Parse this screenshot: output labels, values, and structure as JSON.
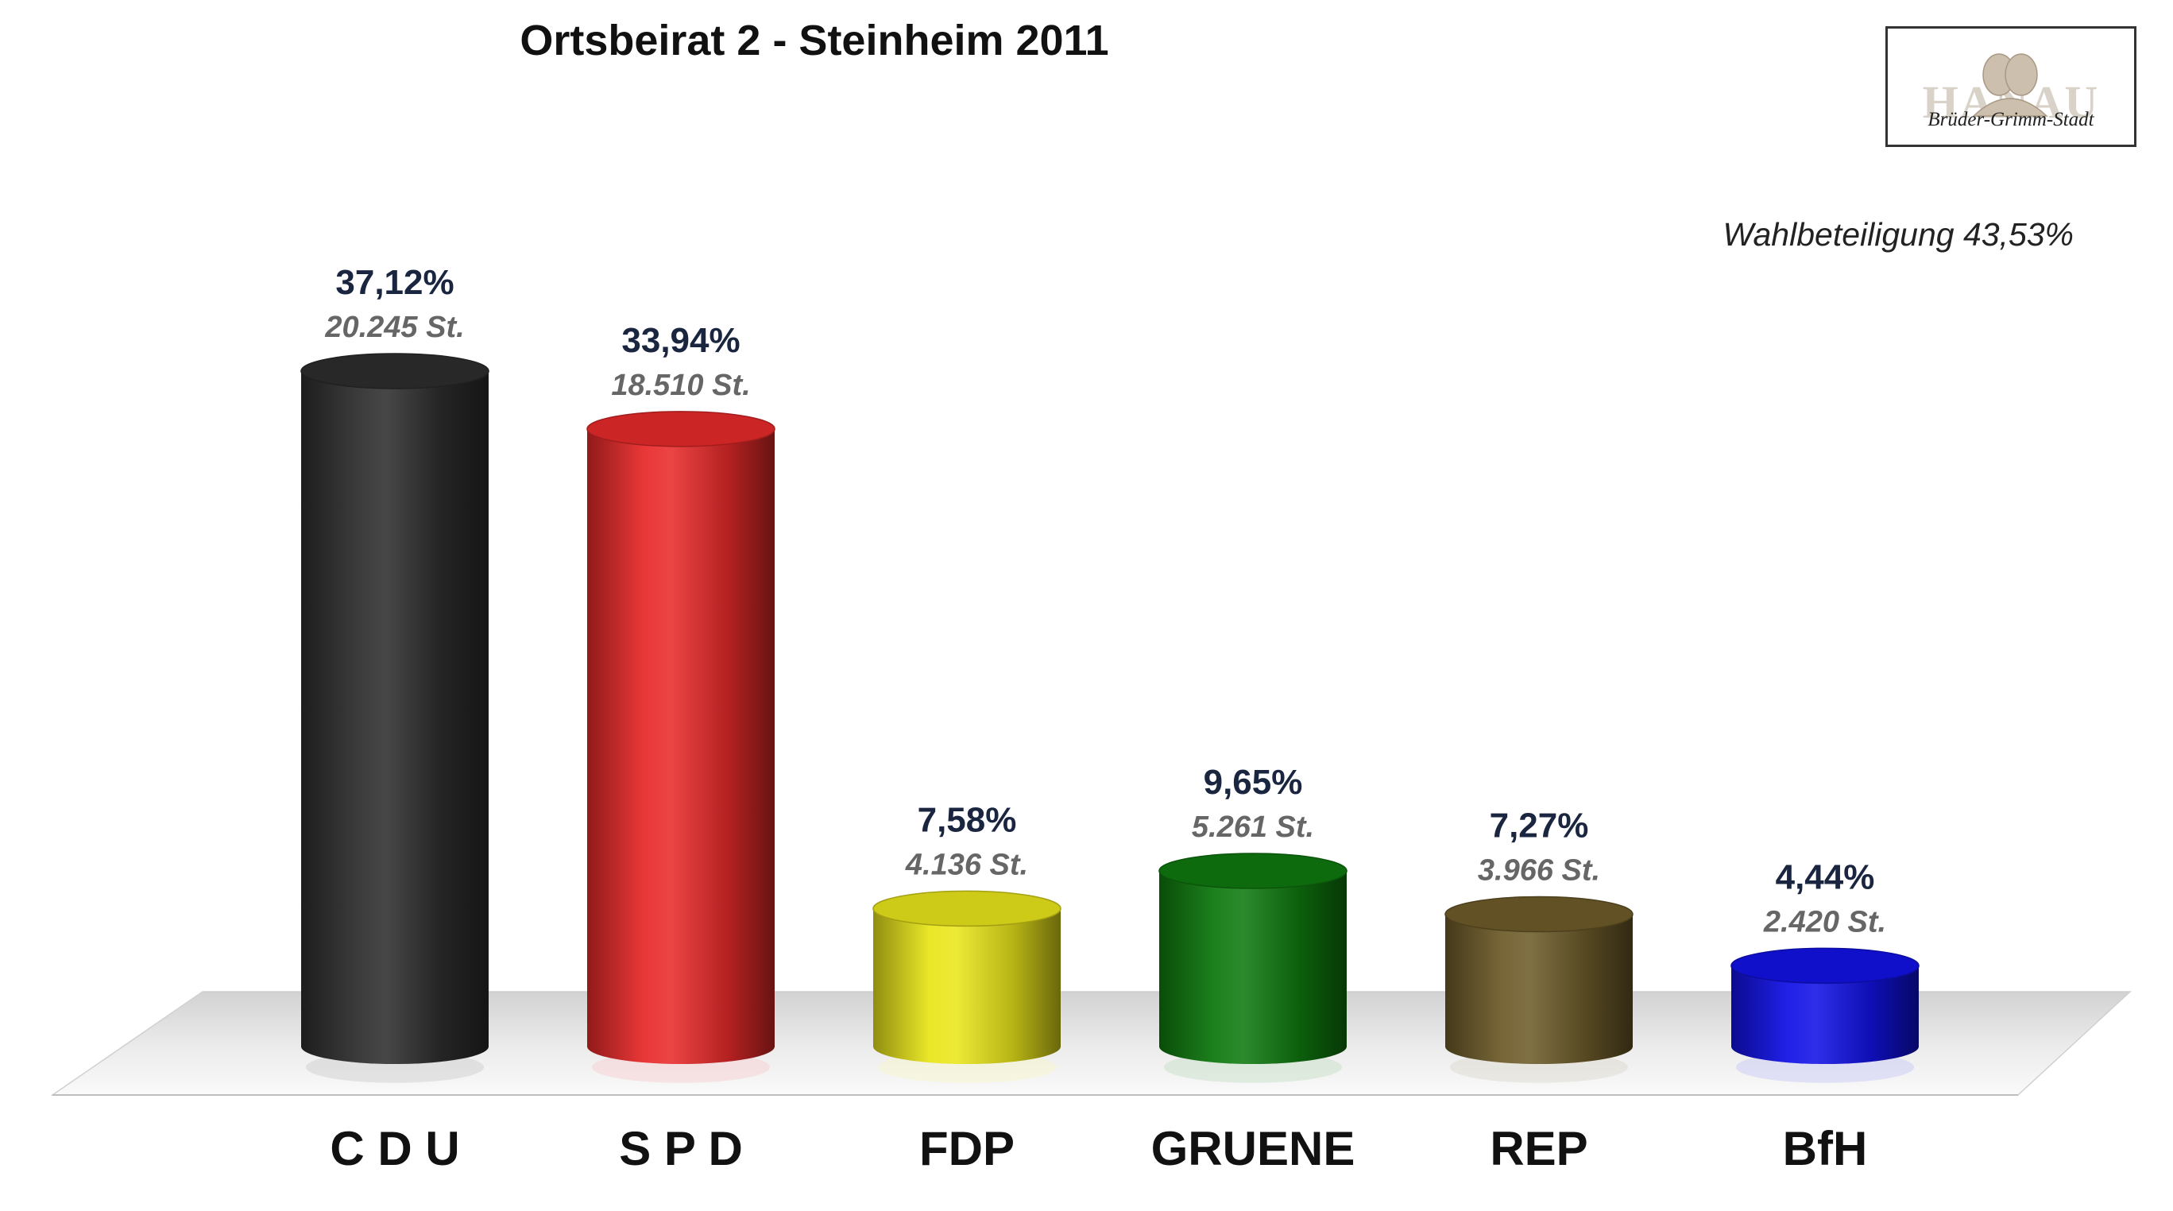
{
  "chart_data": {
    "type": "bar",
    "title": "Ortsbeirat 2 - Steinheim 2011",
    "annotation": "Wahlbeteiligung 43,53%",
    "categories": [
      "C D U",
      "S P D",
      "FDP",
      "GRUENE",
      "REP",
      "BfH"
    ],
    "values": [
      37.12,
      33.94,
      7.58,
      9.65,
      7.27,
      4.44
    ],
    "value_labels": [
      "37,12%",
      "33,94%",
      "7,58%",
      "9,65%",
      "7,27%",
      "4,44%"
    ],
    "votes": [
      20245,
      18510,
      4136,
      5261,
      3966,
      2420
    ],
    "vote_labels": [
      "20.245 St.",
      "18.510 St.",
      "4.136 St.",
      "5.261 St.",
      "3.966 St.",
      "2.420 St."
    ],
    "colors": [
      "#2e2e2e",
      "#e82a2a",
      "#e9e51b",
      "#0f7a0f",
      "#6e5c2a",
      "#1212e6"
    ],
    "xlabel": "",
    "ylabel": "",
    "ylim": [
      0,
      37.12
    ],
    "grid": false,
    "legend": "none",
    "style": "3d-cylinders"
  },
  "logo": {
    "text": "HANAU",
    "tagline": "Brüder-Grimm-Stadt"
  }
}
